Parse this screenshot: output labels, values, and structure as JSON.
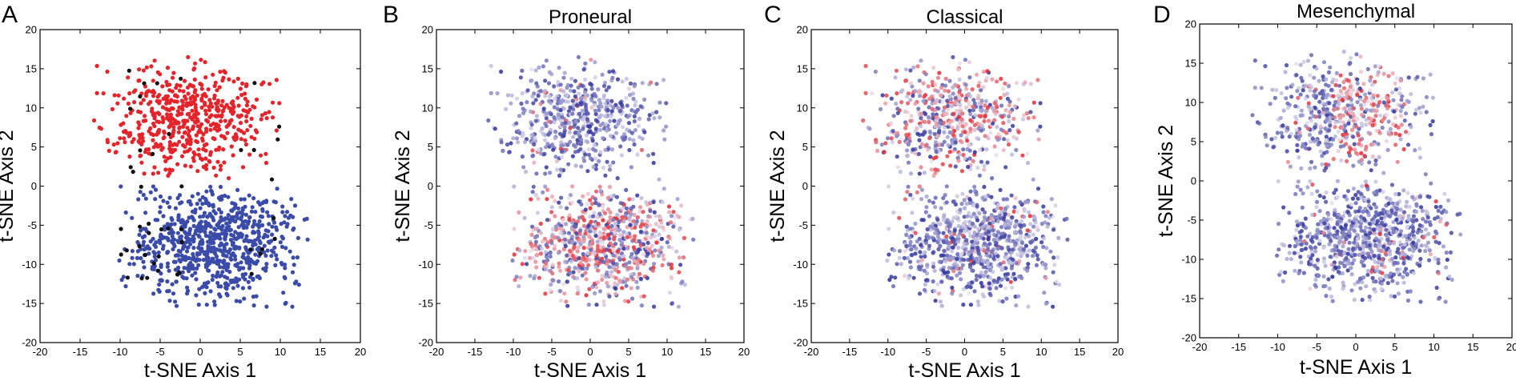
{
  "figure": {
    "panels": [
      {
        "letter": "A",
        "title": "",
        "xlabel": "t-SNE Axis 1",
        "ylabel": "t-SNE Axis 2"
      },
      {
        "letter": "B",
        "title": "Proneural",
        "xlabel": "t-SNE Axis 1",
        "ylabel": "t-SNE Axis 2"
      },
      {
        "letter": "C",
        "title": "Classical",
        "xlabel": "t-SNE Axis 1",
        "ylabel": "t-SNE Axis 2"
      },
      {
        "letter": "D",
        "title": "Mesenchymal",
        "xlabel": "t-SNE Axis 1",
        "ylabel": "t-SNE Axis 2"
      }
    ]
  },
  "colors": {
    "cluster_red": "#e3242b",
    "cluster_blue": "#3b4ba8",
    "cluster_black": "#111111",
    "score_low": "#2b2f9a",
    "score_mid": "#e8e4f0",
    "score_high": "#e3242b"
  },
  "chart_data": [
    {
      "type": "scatter",
      "panel": "A",
      "title": "",
      "xlabel": "t-SNE Axis 1",
      "ylabel": "t-SNE Axis 2",
      "xlim": [
        -20,
        20
      ],
      "ylim": [
        -20,
        20
      ],
      "xticks": [
        -20,
        -15,
        -10,
        -5,
        0,
        5,
        10,
        15,
        20
      ],
      "yticks": [
        -20,
        -15,
        -10,
        -5,
        0,
        5,
        10,
        15,
        20
      ],
      "grid": false,
      "point_colors": "cluster",
      "clusters": [
        {
          "color": "#e3242b",
          "region": {
            "x": [
              -14.5,
              10
            ],
            "y": [
              1,
              17
            ]
          }
        },
        {
          "color": "#3b4ba8",
          "region": {
            "x": [
              -11,
              13.5
            ],
            "y": [
              -15.5,
              0.5
            ]
          }
        },
        {
          "color": "#111111",
          "region": {
            "x": [
              -11,
              10
            ],
            "y": [
              -12,
              16
            ]
          }
        }
      ]
    },
    {
      "type": "scatter",
      "panel": "B",
      "title": "Proneural",
      "xlabel": "t-SNE Axis 1",
      "ylabel": "t-SNE Axis 2",
      "xlim": [
        -20,
        20
      ],
      "ylim": [
        -20,
        20
      ],
      "xticks": [
        -20,
        -15,
        -10,
        -5,
        0,
        5,
        10,
        15,
        20
      ],
      "yticks": [
        -20,
        -15,
        -10,
        -5,
        0,
        5,
        10,
        15,
        20
      ],
      "grid": false,
      "point_colors": "score",
      "score_colors": [
        "#2b2f9a",
        "#e8e4f0",
        "#e3242b"
      ],
      "high_score_region": {
        "x": [
          -12,
          12
        ],
        "y": [
          -15,
          0
        ]
      }
    },
    {
      "type": "scatter",
      "panel": "C",
      "title": "Classical",
      "xlabel": "t-SNE Axis 1",
      "ylabel": "t-SNE Axis 2",
      "xlim": [
        -20,
        20
      ],
      "ylim": [
        -20,
        20
      ],
      "xticks": [
        -20,
        -15,
        -10,
        -5,
        0,
        5,
        10,
        15,
        20
      ],
      "yticks": [
        -20,
        -15,
        -10,
        -5,
        0,
        5,
        10,
        15,
        20
      ],
      "grid": false,
      "point_colors": "score",
      "score_colors": [
        "#2b2f9a",
        "#e8e4f0",
        "#e3242b"
      ],
      "high_score_region": {
        "x": [
          -14,
          10
        ],
        "y": [
          1,
          16
        ]
      }
    },
    {
      "type": "scatter",
      "panel": "D",
      "title": "Mesenchymal",
      "xlabel": "t-SNE Axis 1",
      "ylabel": "t-SNE Axis 2",
      "xlim": [
        -20,
        20
      ],
      "ylim": [
        -20,
        20
      ],
      "xticks": [
        -20,
        -15,
        -10,
        -5,
        0,
        5,
        10,
        15,
        20
      ],
      "yticks": [
        -20,
        -15,
        -10,
        -5,
        0,
        5,
        10,
        15,
        20
      ],
      "grid": false,
      "point_colors": "score",
      "score_colors": [
        "#2b2f9a",
        "#e8e4f0",
        "#e3242b"
      ],
      "high_score_region": {
        "x": [
          -3,
          7
        ],
        "y": [
          2,
          16
        ]
      }
    }
  ]
}
